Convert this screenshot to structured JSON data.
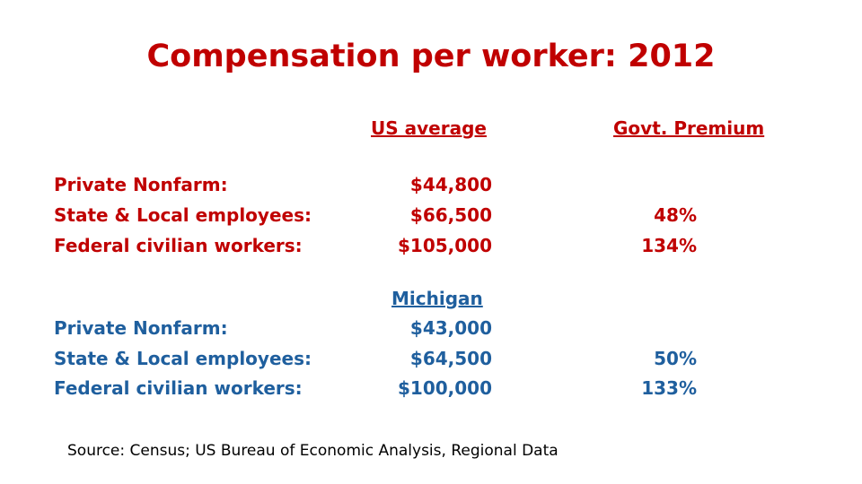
{
  "title": "Compensation per worker: 2012",
  "us_section": {
    "heading": "US average",
    "premium_heading": "Govt. Premium",
    "rows": [
      {
        "label": "Private Nonfarm:",
        "value": "$44,800",
        "premium": ""
      },
      {
        "label": "State & Local employees:",
        "value": "$66,500",
        "premium": "48%"
      },
      {
        "label": "Federal civilian workers:",
        "value": "$105,000",
        "premium": "134%"
      }
    ]
  },
  "michigan_section": {
    "heading": "Michigan",
    "rows": [
      {
        "label": "Private Nonfarm:",
        "value": "$43,000",
        "premium": ""
      },
      {
        "label": "State & Local employees:",
        "value": "$64,500",
        "premium": "50%"
      },
      {
        "label": "Federal civilian workers:",
        "value": "$100,000",
        "premium": "133%"
      }
    ]
  },
  "source": "Source: Census; US Bureau of Economic Analysis, Regional Data",
  "colors": {
    "heading_red": "#C00000",
    "michigan_blue": "#1F5F9E"
  }
}
